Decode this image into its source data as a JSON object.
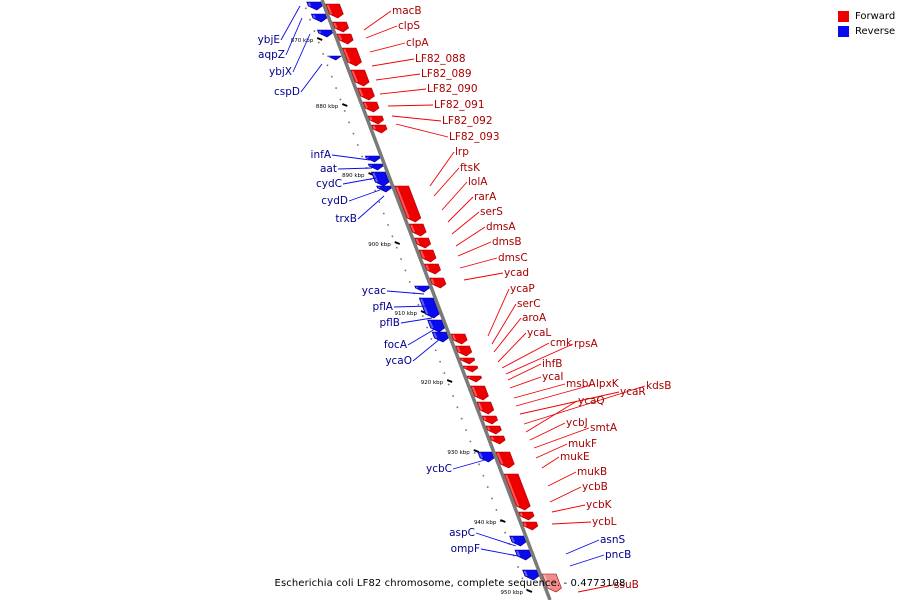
{
  "colors": {
    "forward": "#ee0000",
    "forward_dark": "#a80000",
    "reverse": "#0a0aee",
    "reverse_dark": "#00008a",
    "highlight": "#f08c8c",
    "backbone": "#7a7a7a"
  },
  "legend": {
    "forward_label": "Forward",
    "reverse_label": "Reverse"
  },
  "caption": "Escherichia coli LF82 chromosome, complete sequence. - 0.4773108",
  "ticks": [
    "870 kbp",
    "880 kbp",
    "890 kbp",
    "900 kbp",
    "910 kbp",
    "920 kbp",
    "930 kbp",
    "940 kbp",
    "950 kbp"
  ],
  "genes_forward": [
    "macB",
    "clpS",
    "clpA",
    "LF82_088",
    "LF82_089",
    "LF82_090",
    "LF82_091",
    "LF82_092",
    "LF82_093",
    "lrp",
    "ftsK",
    "lolA",
    "rarA",
    "serS",
    "dmsA",
    "dmsB",
    "dmsC",
    "ycad",
    "ycaP",
    "serC",
    "aroA",
    "ycaL",
    "cmk",
    "rpsA",
    "ihfB",
    "ycaI",
    "msbA",
    "lpxK",
    "ycaR",
    "kdsB",
    "ycaQ",
    "ycbJ",
    "smtA",
    "mukF",
    "mukE",
    "mukB",
    "ycbB",
    "ycbK",
    "ycbL",
    "ssuB"
  ],
  "genes_reverse": [
    "ybjE",
    "aqpZ",
    "ybjX",
    "cspD",
    "infA",
    "aat",
    "cydC",
    "cydD",
    "trxB",
    "ycac",
    "pflA",
    "pflB",
    "focA",
    "ycaO",
    "ycbC",
    "aspC",
    "ompF",
    "asnS",
    "pncB"
  ]
}
